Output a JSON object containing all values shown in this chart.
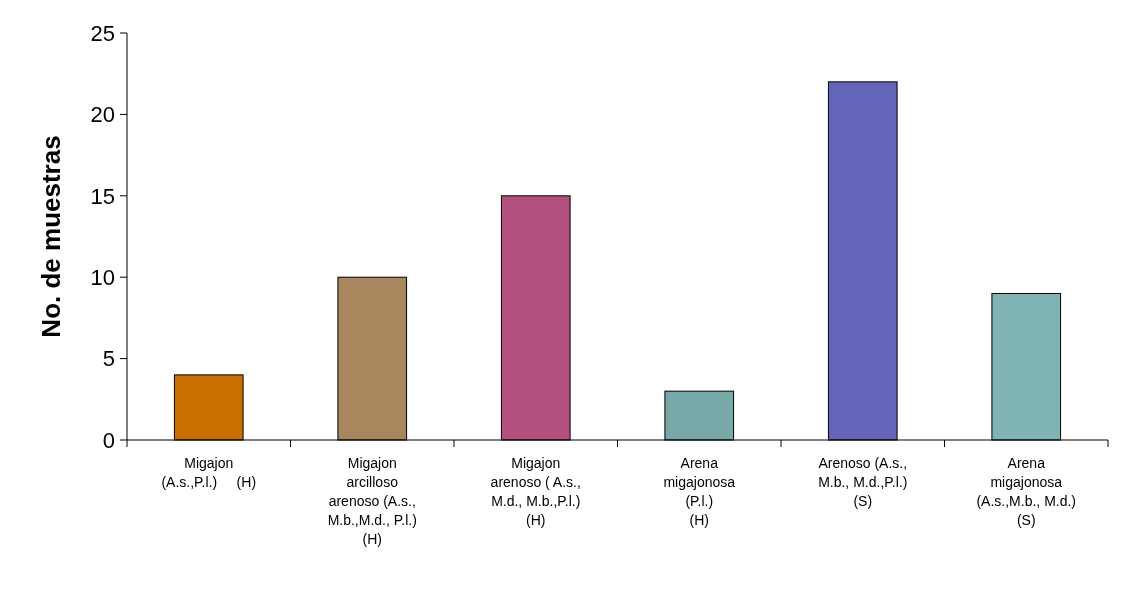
{
  "chart_data": {
    "type": "bar",
    "ylabel": "No. de muestras",
    "categories": [
      "Migajon\n(A.s.,P.l.)     (H)",
      "Migajon\narcilloso\narenoso (A.s.,\nM.b.,M.d., P.l.)\n(H)",
      "Migajon\narenoso ( A.s.,\nM.d., M.b.,P.l.)\n(H)",
      "Arena\nmigajonosa\n(P.l.)\n(H)",
      "Arenoso (A.s.,\nM.b., M.d.,P.l.)\n(S)",
      "Arena\nmigajonosa\n(A.s.,M.b., M.d.)\n(S)"
    ],
    "values": [
      4,
      10,
      15,
      3,
      22,
      9
    ],
    "colors": [
      "#c87000",
      "#a8865e",
      "#b4507e",
      "#78a8a8",
      "#6464b8",
      "#80b4b4"
    ],
    "ylim": [
      0,
      25
    ],
    "yticks": [
      0,
      5,
      10,
      15,
      20,
      25
    ],
    "grid": false
  }
}
